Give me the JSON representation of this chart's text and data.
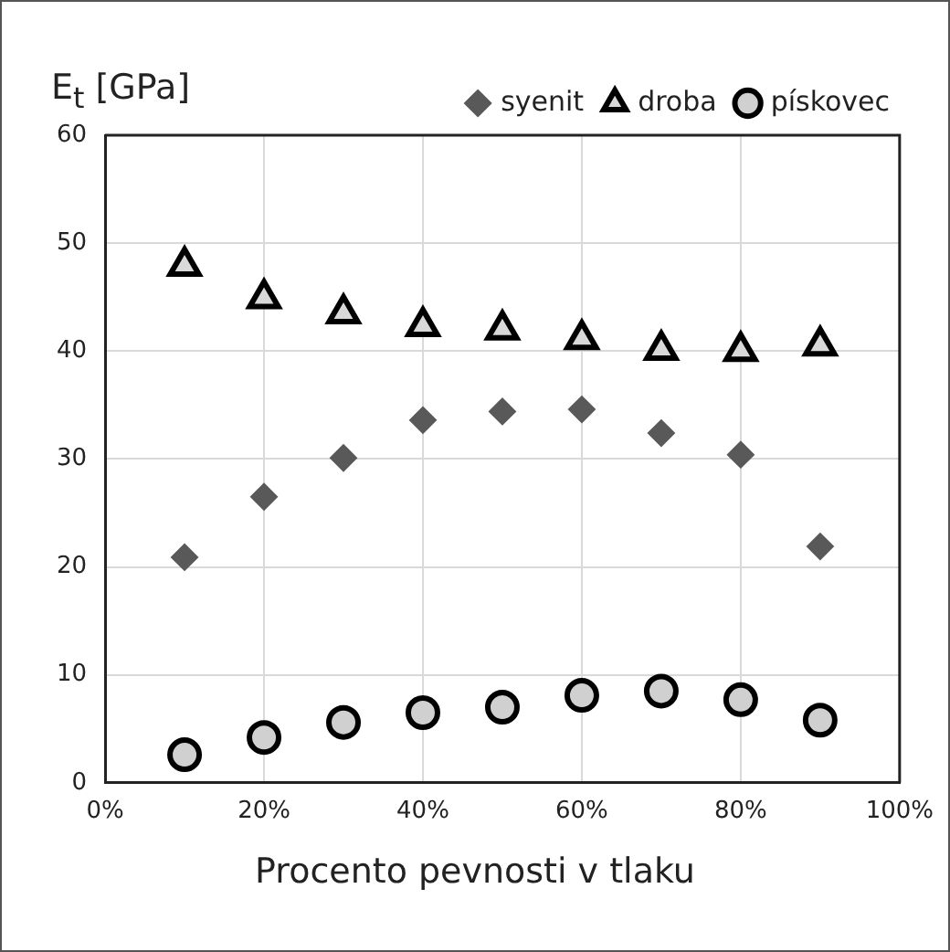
{
  "chart_data": {
    "type": "scatter",
    "ylabel": "E$_{t}$ [GPa]",
    "xlabel": "Procento pevnosti v tlaku",
    "x": [
      10,
      20,
      30,
      40,
      50,
      60,
      70,
      80,
      90
    ],
    "series": [
      {
        "name": "syenit",
        "color": "#595959",
        "marker": "diamond",
        "values": [
          20.9,
          26.5,
          30.1,
          33.6,
          34.4,
          34.6,
          32.4,
          30.4,
          21.9
        ]
      },
      {
        "name": "droba",
        "color": "#d9d9d9",
        "marker": "triangle",
        "values": [
          47.9,
          44.9,
          43.5,
          42.3,
          42.0,
          41.1,
          40.1,
          40.0,
          40.5
        ]
      },
      {
        "name": "pískovec",
        "color": "#d0d0d0",
        "marker": "circle",
        "values": [
          2.6,
          4.2,
          5.6,
          6.5,
          7.0,
          8.1,
          8.5,
          7.7,
          5.8
        ]
      }
    ],
    "xlim": [
      0,
      100
    ],
    "xticks": [
      {
        "value": 0,
        "label": "0%"
      },
      {
        "value": 20,
        "label": "20%"
      },
      {
        "value": 40,
        "label": "40%"
      },
      {
        "value": 60,
        "label": "60%"
      },
      {
        "value": 80,
        "label": "80%"
      },
      {
        "value": 100,
        "label": "100%"
      }
    ],
    "ylim": [
      0,
      60
    ],
    "yticks": [
      0,
      10,
      20,
      30,
      40,
      50,
      60
    ],
    "grid": true,
    "legend": "top right"
  }
}
